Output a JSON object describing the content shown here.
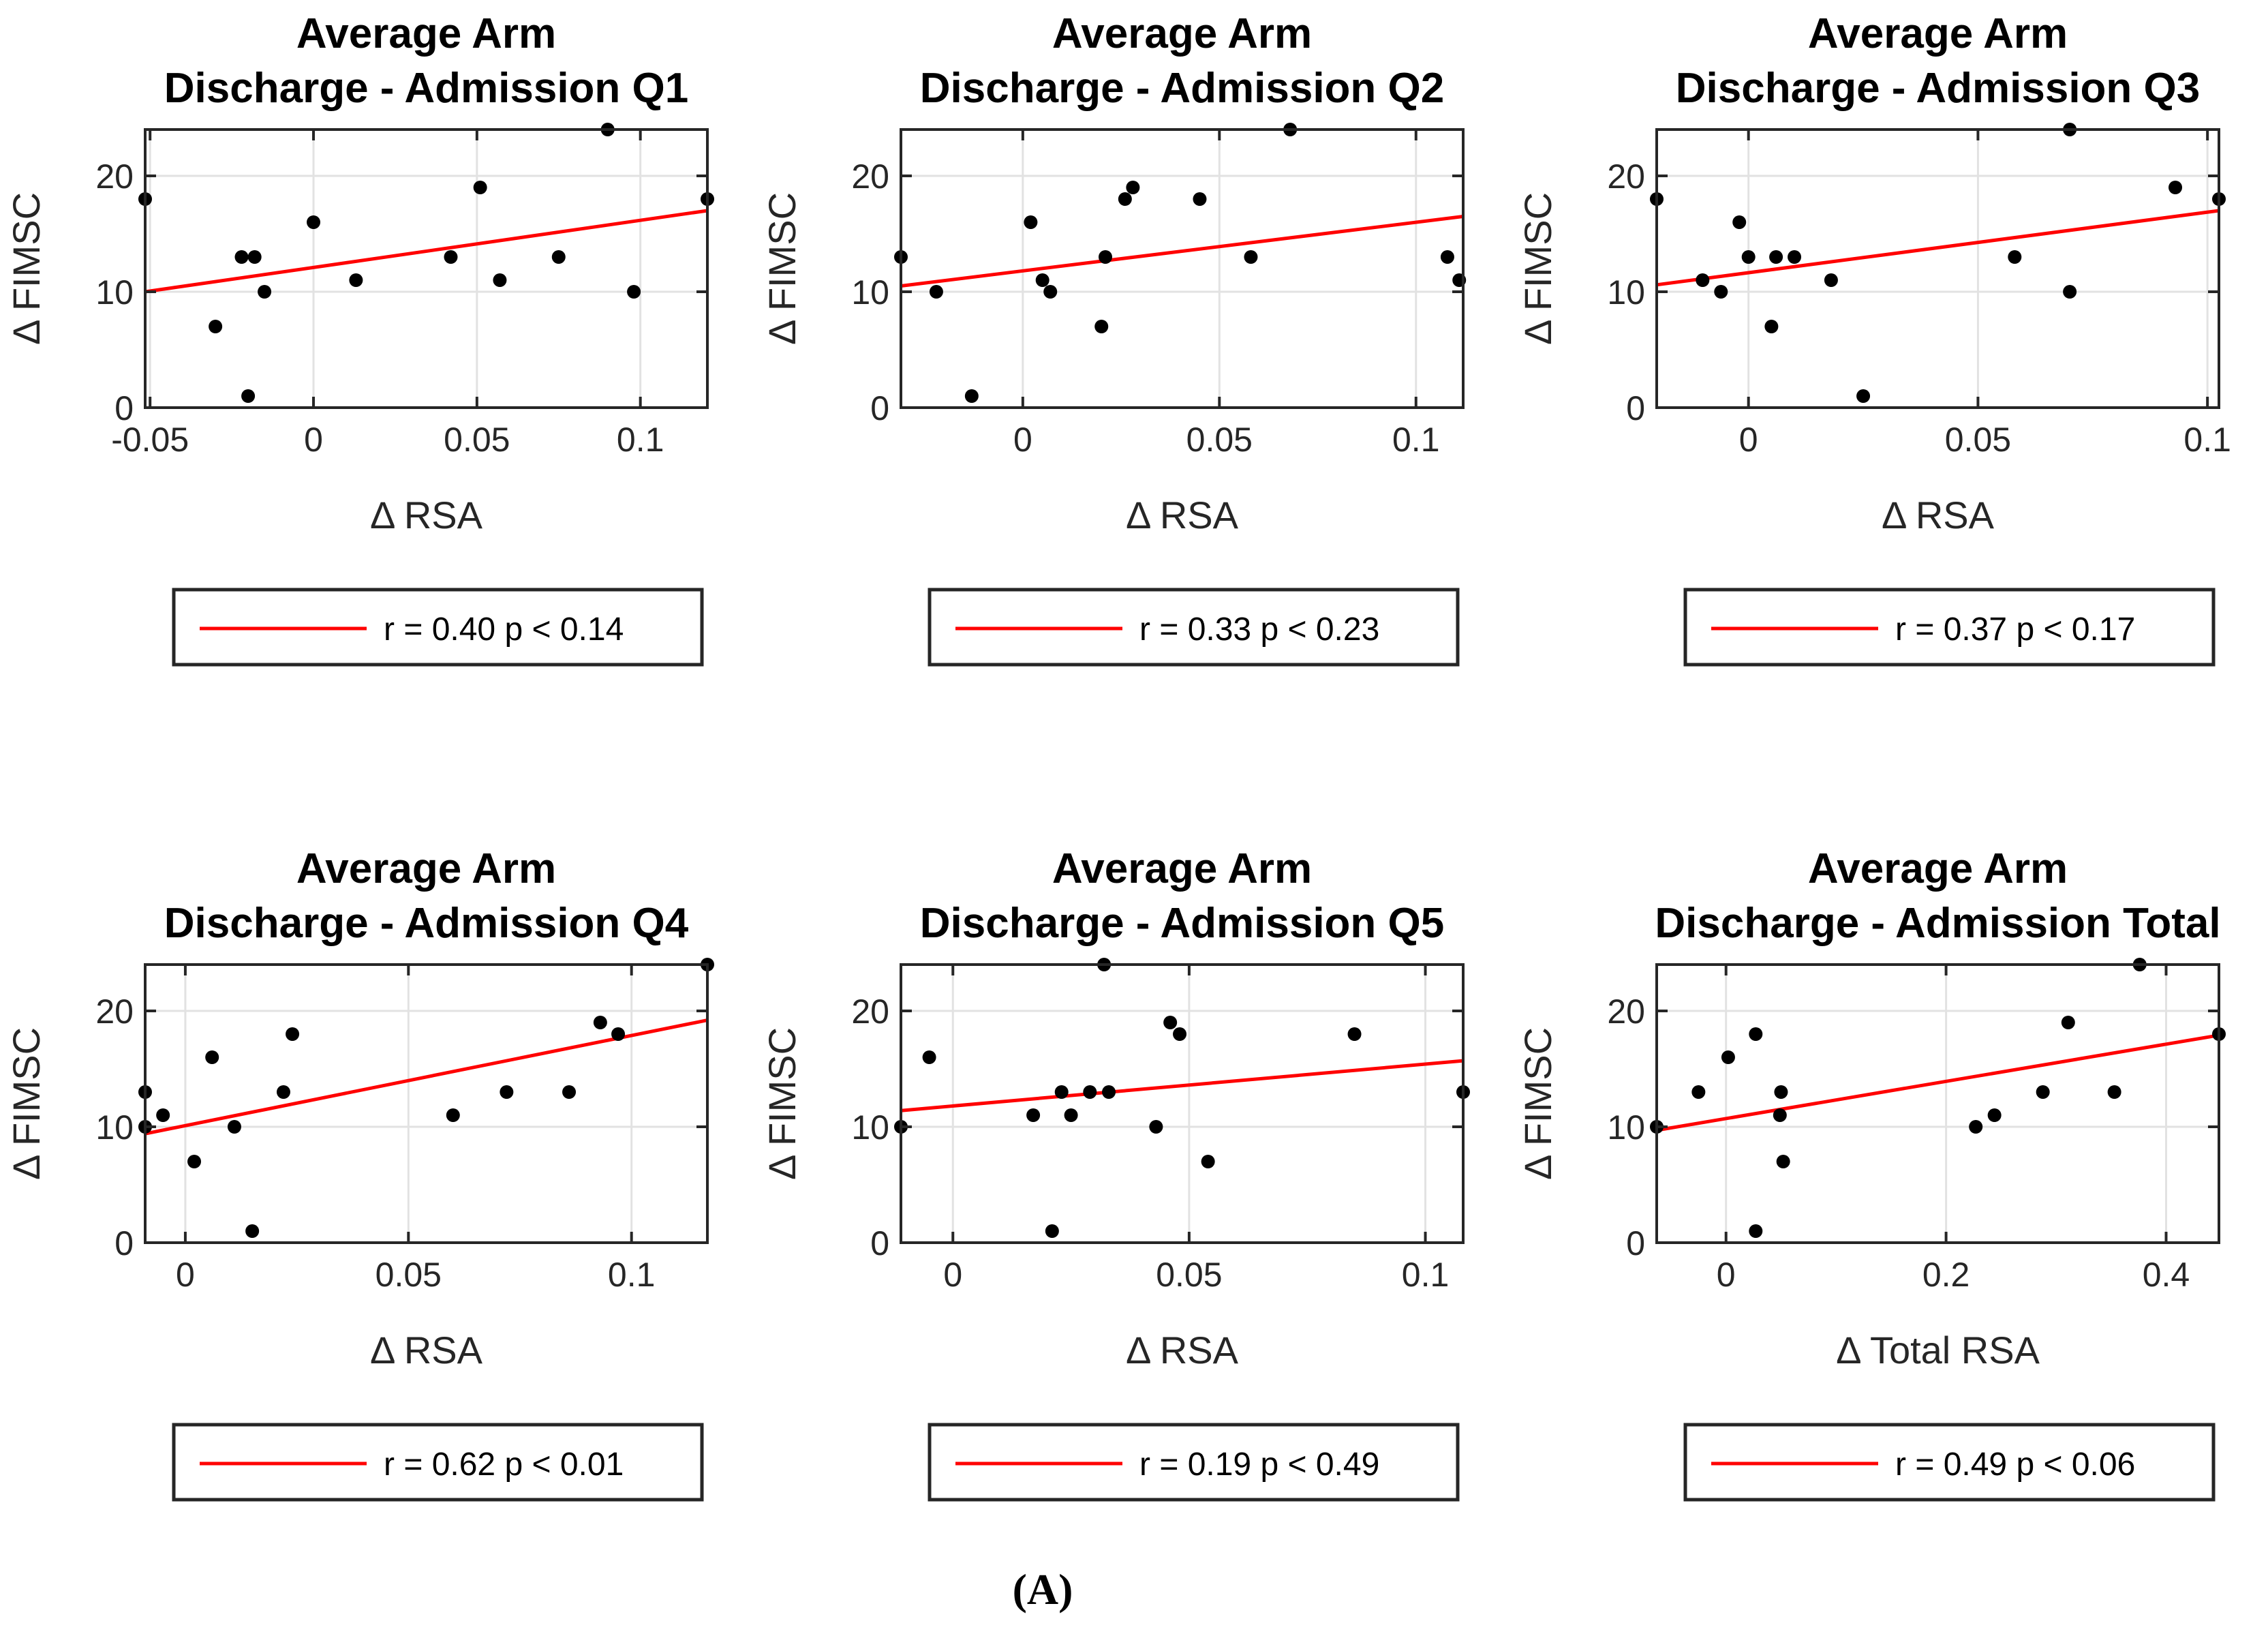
{
  "chart_data": {
    "type": "scatter",
    "figure_caption": "(A)",
    "layout": {
      "grid": "2 rows x 3 columns",
      "gridlines": true,
      "legend_position": "below-axes"
    },
    "colors": {
      "trend_line": "#ff0000",
      "point": "#000000",
      "grid_line": "#e2e2e2",
      "axis": "#262626",
      "background": "#ffffff"
    },
    "panels": [
      {
        "title_line1": "Average Arm",
        "title_line2": "Discharge - Admission Q1",
        "xlabel": "Δ RSA",
        "ylabel": "Δ FIMSC",
        "legend_label": "r = 0.40 p < 0.14",
        "xlim": [
          -0.0515,
          0.1205
        ],
        "ylim": [
          0,
          24
        ],
        "xticks": [
          -0.05,
          0,
          0.05,
          0.1
        ],
        "xtick_labels": [
          "-0.05",
          "0",
          "0.05",
          "0.1"
        ],
        "yticks": [
          0,
          10,
          20
        ],
        "ytick_labels": [
          "0",
          "10",
          "20"
        ],
        "trend": {
          "x": [
            -0.0515,
            0.1205
          ],
          "y": [
            10.0,
            17.0
          ]
        },
        "points": [
          [
            -0.0515,
            18
          ],
          [
            -0.03,
            7
          ],
          [
            -0.022,
            13
          ],
          [
            -0.02,
            1
          ],
          [
            -0.018,
            13
          ],
          [
            -0.015,
            10
          ],
          [
            0.0,
            16
          ],
          [
            0.013,
            11
          ],
          [
            0.042,
            13
          ],
          [
            0.051,
            19
          ],
          [
            0.057,
            11
          ],
          [
            0.075,
            13
          ],
          [
            0.09,
            24
          ],
          [
            0.098,
            10
          ],
          [
            0.1205,
            18
          ]
        ]
      },
      {
        "title_line1": "Average Arm",
        "title_line2": "Discharge - Admission Q2",
        "xlabel": "Δ RSA",
        "ylabel": "Δ FIMSC",
        "legend_label": "r = 0.33 p < 0.23",
        "xlim": [
          -0.031,
          0.112
        ],
        "ylim": [
          0,
          24
        ],
        "xticks": [
          0,
          0.05,
          0.1
        ],
        "xtick_labels": [
          "0",
          "0.05",
          "0.1"
        ],
        "yticks": [
          0,
          10,
          20
        ],
        "ytick_labels": [
          "0",
          "10",
          "20"
        ],
        "trend": {
          "x": [
            -0.031,
            0.112
          ],
          "y": [
            10.5,
            16.5
          ]
        },
        "points": [
          [
            -0.031,
            13
          ],
          [
            -0.022,
            10
          ],
          [
            -0.013,
            1
          ],
          [
            0.002,
            16
          ],
          [
            0.005,
            11
          ],
          [
            0.007,
            10
          ],
          [
            0.02,
            7
          ],
          [
            0.021,
            13
          ],
          [
            0.026,
            18
          ],
          [
            0.028,
            19
          ],
          [
            0.045,
            18
          ],
          [
            0.058,
            13
          ],
          [
            0.068,
            24
          ],
          [
            0.108,
            13
          ],
          [
            0.111,
            11
          ]
        ]
      },
      {
        "title_line1": "Average Arm",
        "title_line2": "Discharge - Admission Q3",
        "xlabel": "Δ RSA",
        "ylabel": "Δ FIMSC",
        "legend_label": "r = 0.37 p < 0.17",
        "xlim": [
          -0.02,
          0.1025
        ],
        "ylim": [
          0,
          24
        ],
        "xticks": [
          0,
          0.05,
          0.1
        ],
        "xtick_labels": [
          "0",
          "0.05",
          "0.1"
        ],
        "yticks": [
          0,
          10,
          20
        ],
        "ytick_labels": [
          "0",
          "10",
          "20"
        ],
        "trend": {
          "x": [
            -0.02,
            0.1025
          ],
          "y": [
            10.6,
            17.0
          ]
        },
        "points": [
          [
            -0.02,
            18
          ],
          [
            -0.01,
            11
          ],
          [
            -0.006,
            10
          ],
          [
            -0.002,
            16
          ],
          [
            0.0,
            13
          ],
          [
            0.005,
            7
          ],
          [
            0.006,
            13
          ],
          [
            0.01,
            13
          ],
          [
            0.018,
            11
          ],
          [
            0.025,
            1
          ],
          [
            0.058,
            13
          ],
          [
            0.07,
            24
          ],
          [
            0.07,
            10
          ],
          [
            0.093,
            19
          ],
          [
            0.1025,
            18
          ]
        ]
      },
      {
        "title_line1": "Average Arm",
        "title_line2": "Discharge - Admission Q4",
        "xlabel": "Δ RSA",
        "ylabel": "Δ FIMSC",
        "legend_label": "r = 0.62 p < 0.01",
        "xlim": [
          -0.009,
          0.117
        ],
        "ylim": [
          0,
          24
        ],
        "xticks": [
          0,
          0.05,
          0.1
        ],
        "xtick_labels": [
          "0",
          "0.05",
          "0.1"
        ],
        "yticks": [
          0,
          10,
          20
        ],
        "ytick_labels": [
          "0",
          "10",
          "20"
        ],
        "trend": {
          "x": [
            -0.009,
            0.117
          ],
          "y": [
            9.4,
            19.2
          ]
        },
        "points": [
          [
            -0.009,
            13
          ],
          [
            -0.009,
            10
          ],
          [
            -0.005,
            11
          ],
          [
            0.002,
            7
          ],
          [
            0.006,
            16
          ],
          [
            0.011,
            10
          ],
          [
            0.015,
            1
          ],
          [
            0.022,
            13
          ],
          [
            0.024,
            18
          ],
          [
            0.06,
            11
          ],
          [
            0.072,
            13
          ],
          [
            0.086,
            13
          ],
          [
            0.093,
            19
          ],
          [
            0.097,
            18
          ],
          [
            0.117,
            24
          ]
        ]
      },
      {
        "title_line1": "Average Arm",
        "title_line2": "Discharge - Admission Q5",
        "xlabel": "Δ RSA",
        "ylabel": "Δ FIMSC",
        "legend_label": "r = 0.19 p < 0.49",
        "xlim": [
          -0.011,
          0.108
        ],
        "ylim": [
          0,
          24
        ],
        "xticks": [
          0,
          0.05,
          0.1
        ],
        "xtick_labels": [
          "0",
          "0.05",
          "0.1"
        ],
        "yticks": [
          0,
          10,
          20
        ],
        "ytick_labels": [
          "0",
          "10",
          "20"
        ],
        "trend": {
          "x": [
            -0.011,
            0.108
          ],
          "y": [
            11.4,
            15.7
          ]
        },
        "points": [
          [
            -0.011,
            10
          ],
          [
            -0.005,
            16
          ],
          [
            0.017,
            11
          ],
          [
            0.021,
            1
          ],
          [
            0.023,
            13
          ],
          [
            0.025,
            11
          ],
          [
            0.029,
            13
          ],
          [
            0.032,
            24
          ],
          [
            0.033,
            13
          ],
          [
            0.043,
            10
          ],
          [
            0.046,
            19
          ],
          [
            0.048,
            18
          ],
          [
            0.054,
            7
          ],
          [
            0.085,
            18
          ],
          [
            0.108,
            13
          ]
        ]
      },
      {
        "title_line1": "Average Arm",
        "title_line2": "Discharge - Admission Total",
        "xlabel": "Δ Total RSA",
        "ylabel": "Δ FIMSC",
        "legend_label": "r = 0.49 p < 0.06",
        "xlim": [
          -0.063,
          0.448
        ],
        "ylim": [
          0,
          24
        ],
        "xticks": [
          0,
          0.2,
          0.4
        ],
        "xtick_labels": [
          "0",
          "0.2",
          "0.4"
        ],
        "yticks": [
          0,
          10,
          20
        ],
        "ytick_labels": [
          "0",
          "10",
          "20"
        ],
        "trend": {
          "x": [
            -0.063,
            0.448
          ],
          "y": [
            9.7,
            17.9
          ]
        },
        "points": [
          [
            -0.063,
            10
          ],
          [
            -0.025,
            13
          ],
          [
            0.002,
            16
          ],
          [
            0.027,
            18
          ],
          [
            0.027,
            1
          ],
          [
            0.049,
            11
          ],
          [
            0.05,
            13
          ],
          [
            0.052,
            7
          ],
          [
            0.227,
            10
          ],
          [
            0.244,
            11
          ],
          [
            0.288,
            13
          ],
          [
            0.311,
            19
          ],
          [
            0.353,
            13
          ],
          [
            0.376,
            24
          ],
          [
            0.448,
            18
          ]
        ]
      }
    ]
  }
}
